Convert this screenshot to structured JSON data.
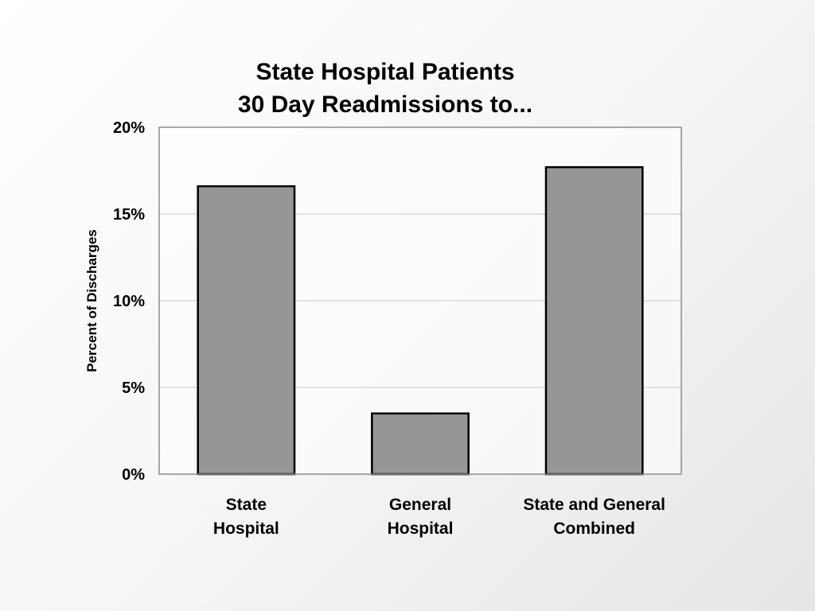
{
  "chart_data": {
    "type": "bar",
    "title": [
      "State Hospital Patients",
      "30 Day Readmissions to..."
    ],
    "categories": [
      [
        "State",
        "Hospital"
      ],
      [
        "General",
        "Hospital"
      ],
      [
        "State and General",
        "Combined"
      ]
    ],
    "values": [
      16.6,
      3.5,
      17.7
    ],
    "xlabel": "",
    "ylabel": "Percent of Discharges",
    "ylim": [
      0,
      20
    ],
    "yticks": [
      0,
      5,
      10,
      15,
      20
    ],
    "ytick_labels": [
      "0%",
      "5%",
      "10%",
      "15%",
      "20%"
    ],
    "grid": true,
    "legend": "none",
    "bar_color": "#969696",
    "bar_edge_color": "#000000",
    "grid_color": "#c8c8c8",
    "plot_border_color": "#8c8c8c"
  }
}
